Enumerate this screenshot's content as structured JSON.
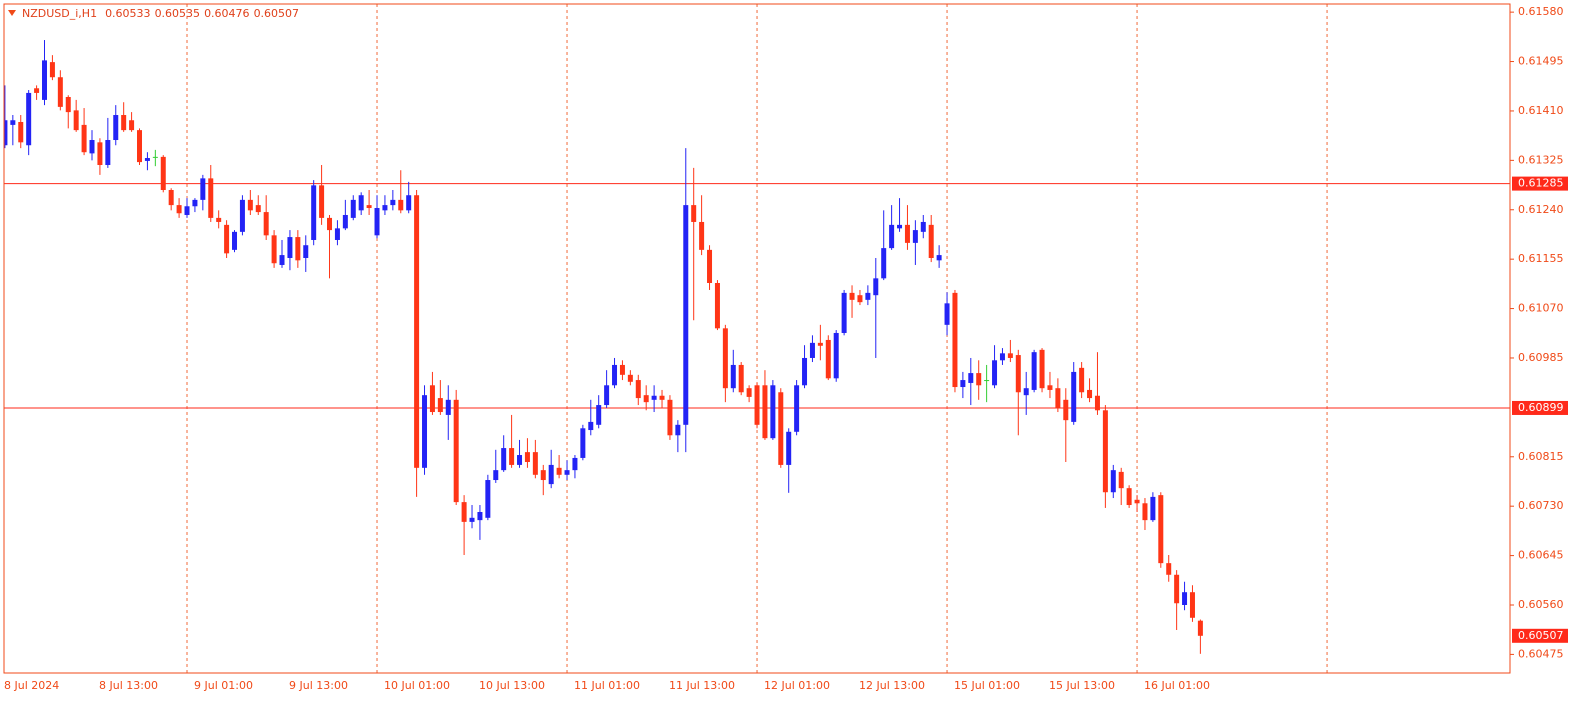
{
  "chart_data": {
    "type": "candlestick",
    "title": "NZDUSD_i,H1",
    "up_color": "#2323f5",
    "down_color": "#ff3516",
    "doji_color": "#32cd32",
    "axis_color": "#f04a18",
    "separator_color": "#f06a3a",
    "hlines": [
      0.61285,
      0.60899
    ],
    "hline_color": "#ff2a1a",
    "ylim": [
      0.60443,
      0.61594
    ],
    "yticks": [
      {
        "value": 0.6158,
        "label": "0.61580"
      },
      0.61495,
      {
        "value": 0.6141,
        "label": "0.61410"
      },
      0.61325,
      {
        "value": 0.6124,
        "label": "0.61240"
      },
      0.61155,
      {
        "value": 0.6107,
        "label": "0.61070"
      },
      0.60985,
      0.60815,
      {
        "value": 0.6073,
        "label": "0.60730"
      },
      0.60645,
      {
        "value": 0.6056,
        "label": "0.60560"
      },
      0.60475
    ],
    "categories": [
      "8 Jul 2024",
      null,
      null,
      null,
      null,
      null,
      null,
      null,
      null,
      null,
      null,
      null,
      "8 Jul 13:00",
      null,
      null,
      null,
      null,
      null,
      null,
      null,
      null,
      null,
      null,
      null,
      "9 Jul 01:00",
      null,
      null,
      null,
      null,
      null,
      null,
      null,
      null,
      null,
      null,
      null,
      "9 Jul 13:00",
      null,
      null,
      null,
      null,
      null,
      null,
      null,
      null,
      null,
      null,
      null,
      "10 Jul 01:00",
      null,
      null,
      null,
      null,
      null,
      null,
      null,
      null,
      null,
      null,
      null,
      "10 Jul 13:00",
      null,
      null,
      null,
      null,
      null,
      null,
      null,
      null,
      null,
      null,
      null,
      "11 Jul 01:00",
      null,
      null,
      null,
      null,
      null,
      null,
      null,
      null,
      null,
      null,
      null,
      "11 Jul 13:00",
      null,
      null,
      null,
      null,
      null,
      null,
      null,
      null,
      null,
      null,
      null,
      "12 Jul 01:00",
      null,
      null,
      null,
      null,
      null,
      null,
      null,
      null,
      null,
      null,
      null,
      "12 Jul 13:00",
      null,
      null,
      null,
      null,
      null,
      null,
      null,
      null,
      null,
      null,
      null,
      "15 Jul 01:00",
      null,
      null,
      null,
      null,
      null,
      null,
      null,
      null,
      null,
      null,
      null,
      "15 Jul 13:00",
      null,
      null,
      null,
      null,
      null,
      null,
      null,
      null,
      null,
      null,
      null,
      "16 Jul 01:00",
      null,
      null,
      null,
      null,
      null,
      null,
      null,
      null
    ],
    "open": [
      0.61377,
      0.61351,
      0.61386,
      0.61391,
      0.61351,
      0.61449,
      0.61429,
      0.61494,
      0.61468,
      0.61434,
      0.61411,
      0.61386,
      0.61337,
      0.61356,
      0.61317,
      0.6136,
      0.61403,
      0.61394,
      0.61377,
      0.61324,
      0.61331,
      0.61331,
      0.61274,
      0.61248,
      0.61231,
      0.61246,
      0.61257,
      0.61294,
      0.61226,
      0.61214,
      0.61171,
      0.61202,
      0.61257,
      0.61248,
      0.61236,
      0.61196,
      0.61145,
      0.61157,
      0.61193,
      0.61157,
      0.61188,
      0.61282,
      0.61226,
      0.61188,
      0.61208,
      0.61226,
      0.61239,
      0.61248,
      0.61196,
      0.61239,
      0.61248,
      0.61257,
      0.61239,
      0.61265,
      0.60796,
      0.60938,
      0.60916,
      0.60887,
      0.60913,
      0.60737,
      0.60703,
      0.60706,
      0.6071,
      0.60775,
      0.60792,
      0.6083,
      0.60801,
      0.60823,
      0.60823,
      0.60792,
      0.60768,
      0.60796,
      0.60784,
      0.60792,
      0.60813,
      0.60861,
      0.6087,
      0.60904,
      0.60938,
      0.60973,
      0.60956,
      0.60947,
      0.60921,
      0.60913,
      0.6092,
      0.60913,
      0.60852,
      0.6087,
      0.61248,
      0.61219,
      0.61171,
      0.61114,
      0.61036,
      0.60933,
      0.60973,
      0.60933,
      0.60938,
      0.60938,
      0.60847,
      0.60926,
      0.60801,
      0.60858,
      0.60938,
      0.60985,
      0.61011,
      0.61016,
      0.6095,
      0.61028,
      0.61097,
      0.61093,
      0.61085,
      0.61093,
      0.61122,
      0.61174,
      0.61208,
      0.61214,
      0.61183,
      0.61202,
      0.61214,
      0.61153,
      0.61042,
      0.61097,
      0.60935,
      0.60942,
      0.60959,
      0.60947,
      0.60938,
      0.60981,
      0.60993,
      0.6099,
      0.60921,
      0.6093,
      0.60999,
      0.60938,
      0.60933,
      0.60913,
      0.60875,
      0.60968,
      0.6093,
      0.6092,
      0.60895,
      0.60754,
      0.60789,
      0.60761,
      0.60741,
      0.60735,
      0.60706,
      0.60749,
      0.60632,
      0.60612,
      0.6056,
      0.60582,
      0.60533
    ],
    "high": [
      0.61429,
      0.61454,
      0.61403,
      0.61403,
      0.61446,
      0.61454,
      0.61532,
      0.61506,
      0.6148,
      0.61437,
      0.61429,
      0.61415,
      0.61377,
      0.61363,
      0.61398,
      0.6142,
      0.61425,
      0.61408,
      0.6138,
      0.61339,
      0.61343,
      0.61334,
      0.61277,
      0.6126,
      0.6126,
      0.6126,
      0.613,
      0.61317,
      0.61239,
      0.61222,
      0.61205,
      0.61265,
      0.61274,
      0.61265,
      0.61265,
      0.61205,
      0.61188,
      0.61205,
      0.61205,
      0.61196,
      0.61291,
      0.61317,
      0.61231,
      0.61222,
      0.61257,
      0.61265,
      0.6127,
      0.61274,
      0.61265,
      0.61265,
      0.61274,
      0.61308,
      0.61288,
      0.61274,
      0.60938,
      0.60961,
      0.60947,
      0.60938,
      0.6093,
      0.60749,
      0.60732,
      0.60732,
      0.60784,
      0.60827,
      0.60852,
      0.60887,
      0.60844,
      0.60847,
      0.60844,
      0.60801,
      0.60827,
      0.60818,
      0.60809,
      0.60818,
      0.6087,
      0.60913,
      0.60921,
      0.60964,
      0.60985,
      0.60981,
      0.60964,
      0.60956,
      0.60938,
      0.60938,
      0.6093,
      0.60921,
      0.60878,
      0.61346,
      0.61312,
      0.61265,
      0.61179,
      0.61119,
      0.61042,
      0.60999,
      0.60978,
      0.60938,
      0.60942,
      0.60964,
      0.60947,
      0.60933,
      0.60864,
      0.60947,
      0.61007,
      0.61024,
      0.61042,
      0.61024,
      0.61033,
      0.61102,
      0.6111,
      0.61102,
      0.6111,
      0.61157,
      0.61239,
      0.61248,
      0.6126,
      0.61248,
      0.61222,
      0.61231,
      0.61231,
      0.61179,
      0.61098,
      0.61102,
      0.60961,
      0.60985,
      0.60981,
      0.60973,
      0.61007,
      0.61002,
      0.61016,
      0.60999,
      0.60961,
      0.60999,
      0.61002,
      0.60961,
      0.6095,
      0.60933,
      0.60978,
      0.60978,
      0.6095,
      0.60995,
      0.60904,
      0.60801,
      0.60796,
      0.60766,
      0.60749,
      0.60744,
      0.60754,
      0.60754,
      0.60646,
      0.6062,
      0.606,
      0.60594,
      0.60535
    ],
    "low": [
      0.61343,
      0.61346,
      0.61351,
      0.61346,
      0.61334,
      0.61429,
      0.6142,
      0.61463,
      0.61411,
      0.6138,
      0.61374,
      0.61334,
      0.61325,
      0.613,
      0.61312,
      0.61351,
      0.61374,
      0.61374,
      0.61317,
      0.61308,
      0.61315,
      0.6127,
      0.61239,
      0.61226,
      0.61226,
      0.61236,
      0.61239,
      0.61219,
      0.61208,
      0.61157,
      0.61167,
      0.61196,
      0.61231,
      0.61231,
      0.61188,
      0.6114,
      0.6114,
      0.61136,
      0.6114,
      0.61133,
      0.61179,
      0.61214,
      0.61122,
      0.61179,
      0.61205,
      0.61222,
      0.61231,
      0.61231,
      0.61191,
      0.61231,
      0.61239,
      0.61234,
      0.61234,
      0.60746,
      0.60784,
      0.60887,
      0.60887,
      0.60844,
      0.60732,
      0.60646,
      0.60692,
      0.60672,
      0.60706,
      0.6077,
      0.60789,
      0.60796,
      0.60796,
      0.60796,
      0.60778,
      0.60749,
      0.60761,
      0.60778,
      0.60775,
      0.60778,
      0.60809,
      0.60852,
      0.60864,
      0.60899,
      0.60933,
      0.60947,
      0.60938,
      0.60904,
      0.60895,
      0.60892,
      0.60899,
      0.60844,
      0.60823,
      0.60823,
      0.6105,
      0.61162,
      0.61102,
      0.61033,
      0.60909,
      0.60926,
      0.60921,
      0.60909,
      0.60864,
      0.60844,
      0.60844,
      0.60796,
      0.60753,
      0.60852,
      0.60933,
      0.60978,
      0.60981,
      0.60947,
      0.60944,
      0.61024,
      0.61054,
      0.61076,
      0.61076,
      0.60985,
      0.61119,
      0.61171,
      0.61202,
      0.61171,
      0.61145,
      0.61191,
      0.6115,
      0.6114,
      0.61024,
      0.60926,
      0.60916,
      0.60904,
      0.60913,
      0.60909,
      0.60933,
      0.60973,
      0.60978,
      0.60852,
      0.60887,
      0.60926,
      0.60926,
      0.60916,
      0.60892,
      0.60806,
      0.6087,
      0.60916,
      0.60909,
      0.60887,
      0.60727,
      0.60744,
      0.60732,
      0.60727,
      0.6072,
      0.60689,
      0.60703,
      0.60624,
      0.606,
      0.60517,
      0.60551,
      0.60531,
      0.60476
    ],
    "close": [
      0.6136,
      0.61394,
      0.61394,
      0.61356,
      0.61441,
      0.61441,
      0.61497,
      0.61468,
      0.61417,
      0.61408,
      0.61377,
      0.61339,
      0.6136,
      0.61317,
      0.6136,
      0.61403,
      0.61377,
      0.61377,
      0.61322,
      0.61329,
      0.61331,
      0.61274,
      0.61248,
      0.61234,
      0.61246,
      0.61257,
      0.61294,
      0.61226,
      0.61219,
      0.61165,
      0.61202,
      0.61257,
      0.61239,
      0.61236,
      0.61196,
      0.61148,
      0.61162,
      0.61193,
      0.61153,
      0.61179,
      0.61282,
      0.61226,
      0.61205,
      0.61208,
      0.61231,
      0.61257,
      0.61265,
      0.61243,
      0.61243,
      0.61248,
      0.61257,
      0.61239,
      0.61265,
      0.60796,
      0.60921,
      0.60892,
      0.60892,
      0.60913,
      0.60737,
      0.60703,
      0.6071,
      0.6072,
      0.60775,
      0.60792,
      0.6083,
      0.60801,
      0.60818,
      0.60806,
      0.60784,
      0.60775,
      0.60801,
      0.60784,
      0.60792,
      0.60813,
      0.60864,
      0.60875,
      0.60904,
      0.60938,
      0.60973,
      0.60956,
      0.60944,
      0.60916,
      0.60909,
      0.6092,
      0.60913,
      0.60852,
      0.6087,
      0.61248,
      0.61219,
      0.61171,
      0.61114,
      0.61036,
      0.60933,
      0.60973,
      0.60926,
      0.60918,
      0.6087,
      0.60847,
      0.60938,
      0.60801,
      0.60858,
      0.60938,
      0.60985,
      0.61011,
      0.61006,
      0.6095,
      0.61028,
      0.61097,
      0.61085,
      0.61081,
      0.61097,
      0.61122,
      0.61174,
      0.61214,
      0.61214,
      0.61183,
      0.61205,
      0.61219,
      0.61157,
      0.61162,
      0.61079,
      0.60935,
      0.60947,
      0.60959,
      0.60938,
      0.60947,
      0.60981,
      0.60993,
      0.60985,
      0.60926,
      0.60933,
      0.60995,
      0.60933,
      0.6093,
      0.60899,
      0.60878,
      0.60961,
      0.60926,
      0.60916,
      0.60895,
      0.60754,
      0.60792,
      0.60761,
      0.60732,
      0.60735,
      0.60706,
      0.60746,
      0.60632,
      0.60612,
      0.60563,
      0.60582,
      0.60538,
      0.60507
    ]
  }
}
